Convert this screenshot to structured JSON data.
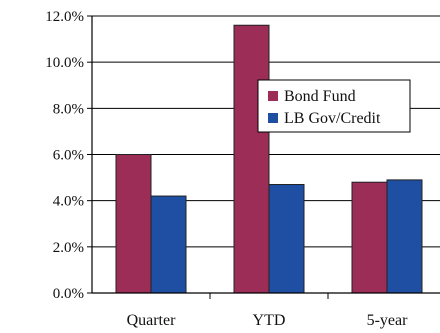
{
  "chart_data": {
    "type": "bar",
    "categories": [
      "Quarter",
      "YTD",
      "5-year"
    ],
    "series": [
      {
        "name": "Bond Fund",
        "color": "#9b2d57",
        "values": [
          6.0,
          11.6,
          4.8
        ]
      },
      {
        "name": "LB Gov/Credit",
        "color": "#1f4fa3",
        "values": [
          4.2,
          4.7,
          4.9
        ]
      }
    ],
    "y_ticks": [
      "0.0%",
      "2.0%",
      "4.0%",
      "6.0%",
      "8.0%",
      "10.0%",
      "12.0%"
    ],
    "ylim": [
      0,
      12
    ],
    "grid": true,
    "legend_position": "top-right"
  }
}
